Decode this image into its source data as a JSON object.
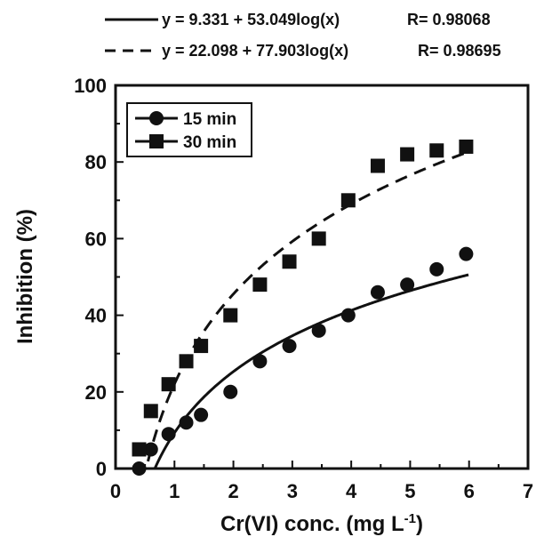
{
  "chart_data": {
    "type": "scatter",
    "xlabel": "Cr(VI) conc. (mg L",
    "xlabel_sup": "-1",
    "xlabel_end": ")",
    "ylabel": "Inhibition (%)",
    "xlim": [
      0,
      7
    ],
    "ylim": [
      0,
      100
    ],
    "x_ticks": [
      "0",
      "1",
      "2",
      "3",
      "4",
      "5",
      "6",
      "7"
    ],
    "y_ticks": [
      "0",
      "20",
      "40",
      "60",
      "80",
      "100"
    ],
    "grid": false,
    "legend_position": "top-left",
    "fit_equations": [
      {
        "style": "solid",
        "text": "y = 9.331 + 53.049log(x)",
        "r_text": "R= 0.98068",
        "a": 9.331,
        "b": 53.049
      },
      {
        "style": "dashed",
        "text": "y = 22.098 + 77.903log(x)",
        "r_text": "R= 0.98695",
        "a": 22.098,
        "b": 77.903
      }
    ],
    "series": [
      {
        "name": "15 min",
        "marker": "circle",
        "line": "solid",
        "x": [
          0.4,
          0.6,
          0.9,
          1.2,
          1.45,
          1.95,
          2.45,
          2.95,
          3.45,
          3.95,
          4.45,
          4.95,
          5.45,
          5.95
        ],
        "y": [
          0,
          5,
          9,
          12,
          14,
          20,
          28,
          32,
          36,
          40,
          46,
          48,
          52,
          56
        ]
      },
      {
        "name": "30 min",
        "marker": "square",
        "line": "dashed",
        "x": [
          0.4,
          0.6,
          0.9,
          1.2,
          1.45,
          1.95,
          2.45,
          2.95,
          3.45,
          3.95,
          4.45,
          4.95,
          5.45,
          5.95
        ],
        "y": [
          5,
          15,
          22,
          28,
          32,
          40,
          48,
          54,
          60,
          70,
          79,
          82,
          83,
          84
        ]
      }
    ]
  }
}
